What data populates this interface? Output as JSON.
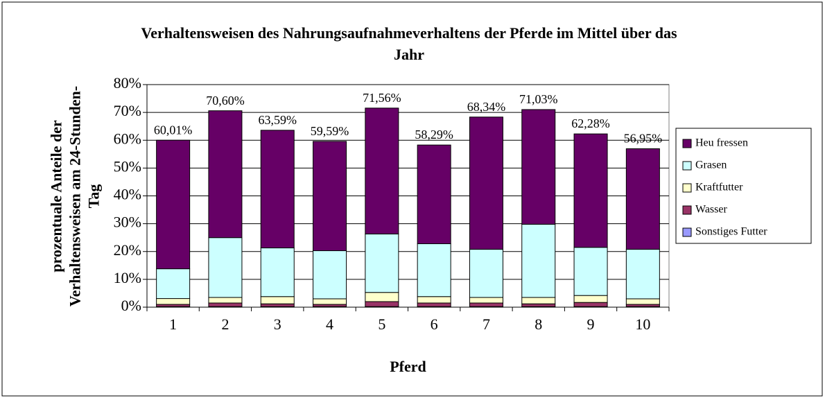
{
  "chart_data": {
    "type": "stacked_bar",
    "title": "Verhaltensweisen des Nahrungsaufnahmeverhaltens der Pferde im Mittel über das Jahr",
    "x_label": "Pferd",
    "y_label": "prozentuale Anteile der Verhaltensweisen am 24-Stunden-Tag",
    "categories": [
      "1",
      "2",
      "3",
      "4",
      "5",
      "6",
      "7",
      "8",
      "9",
      "10"
    ],
    "series": [
      {
        "name": "Sonstiges Futter",
        "color": "#9999ff",
        "values": [
          0.2,
          0.2,
          0.2,
          0.2,
          0.2,
          0.2,
          0.2,
          0.2,
          0.2,
          0.2
        ]
      },
      {
        "name": "Wasser",
        "color": "#993366",
        "values": [
          0.8,
          1.3,
          1.0,
          0.8,
          1.8,
          1.3,
          1.3,
          1.0,
          1.5,
          0.8
        ]
      },
      {
        "name": "Kraftfutter",
        "color": "#ffffcc",
        "values": [
          2.1,
          2.0,
          2.6,
          2.0,
          3.3,
          2.3,
          2.0,
          2.3,
          2.5,
          2.0
        ]
      },
      {
        "name": "Grasen",
        "color": "#ccffff",
        "values": [
          10.7,
          21.5,
          17.5,
          17.3,
          21.0,
          19.0,
          17.3,
          26.3,
          17.3,
          17.8
        ]
      },
      {
        "name": "Heu fressen",
        "color": "#660066",
        "values": [
          46.21,
          45.6,
          42.29,
          39.29,
          45.26,
          35.49,
          47.54,
          41.23,
          40.78,
          36.15
        ]
      }
    ],
    "totals": [
      60.01,
      70.6,
      63.59,
      59.59,
      71.56,
      58.29,
      68.34,
      71.03,
      62.28,
      56.95
    ],
    "total_labels": [
      "60,01%",
      "70,60%",
      "63,59%",
      "59,59%",
      "71,56%",
      "58,29%",
      "68,34%",
      "71,03%",
      "62,28%",
      "56,95%"
    ],
    "ylim": [
      0,
      80
    ],
    "yticks": [
      {
        "value": 0,
        "label": "0%"
      },
      {
        "value": 10,
        "label": "10%"
      },
      {
        "value": 20,
        "label": "20%"
      },
      {
        "value": 30,
        "label": "30%"
      },
      {
        "value": 40,
        "label": "40%"
      },
      {
        "value": 50,
        "label": "50%"
      },
      {
        "value": 60,
        "label": "60%"
      },
      {
        "value": 70,
        "label": "70%"
      },
      {
        "value": 80,
        "label": "80%"
      }
    ],
    "grid": true,
    "legend": "right"
  }
}
